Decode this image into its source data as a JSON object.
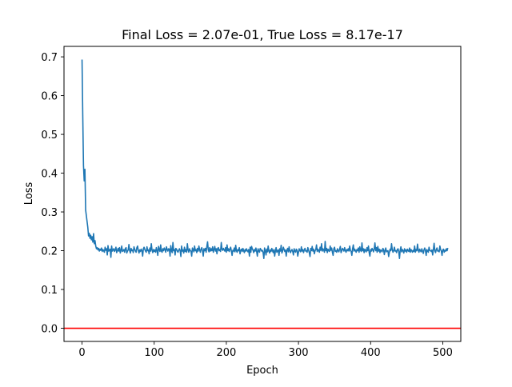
{
  "chart_data": {
    "type": "line",
    "title": "Final Loss = 2.07e-01, True Loss = 8.17e-17",
    "xlabel": "Epoch",
    "ylabel": "Loss",
    "xlim": [
      -25,
      525
    ],
    "ylim": [
      -0.034,
      0.727
    ],
    "xticks": [
      0,
      100,
      200,
      300,
      400,
      500
    ],
    "xtick_labels": [
      "0",
      "100",
      "200",
      "300",
      "400",
      "500"
    ],
    "yticks": [
      0.0,
      0.1,
      0.2,
      0.3,
      0.4,
      0.5,
      0.6,
      0.7
    ],
    "ytick_labels": [
      "0.0",
      "0.1",
      "0.2",
      "0.3",
      "0.4",
      "0.5",
      "0.6",
      "0.7"
    ],
    "grid": false,
    "series": [
      {
        "color": "#1f77b4",
        "x_start": 0,
        "x_step": 1,
        "values": [
          0.693,
          0.55,
          0.42,
          0.38,
          0.41,
          0.305,
          0.29,
          0.275,
          0.26,
          0.238,
          0.245,
          0.232,
          0.24,
          0.228,
          0.236,
          0.222,
          0.244,
          0.218,
          0.226,
          0.212,
          0.205,
          0.208,
          0.202,
          0.206,
          0.199,
          0.204,
          0.201,
          0.207,
          0.198,
          0.203,
          0.2,
          0.196,
          0.209,
          0.201,
          0.205,
          0.189,
          0.213,
          0.199,
          0.201,
          0.204,
          0.183,
          0.212,
          0.199,
          0.202,
          0.205,
          0.198,
          0.202,
          0.209,
          0.195,
          0.2,
          0.206,
          0.199,
          0.208,
          0.194,
          0.201,
          0.212,
          0.198,
          0.2,
          0.203,
          0.196,
          0.205,
          0.208,
          0.194,
          0.199,
          0.202,
          0.216,
          0.2,
          0.194,
          0.206,
          0.2,
          0.202,
          0.195,
          0.21,
          0.204,
          0.199,
          0.196,
          0.208,
          0.212,
          0.2,
          0.194,
          0.202,
          0.198,
          0.204,
          0.2,
          0.186,
          0.205,
          0.209,
          0.203,
          0.199,
          0.196,
          0.21,
          0.2,
          0.202,
          0.192,
          0.207,
          0.199,
          0.218,
          0.202,
          0.195,
          0.203,
          0.198,
          0.202,
          0.196,
          0.208,
          0.2,
          0.188,
          0.211,
          0.203,
          0.198,
          0.215,
          0.199,
          0.196,
          0.205,
          0.2,
          0.207,
          0.203,
          0.196,
          0.21,
          0.203,
          0.199,
          0.205,
          0.204,
          0.186,
          0.213,
          0.2,
          0.195,
          0.221,
          0.2,
          0.203,
          0.189,
          0.206,
          0.204,
          0.199,
          0.196,
          0.201,
          0.205,
          0.2,
          0.185,
          0.212,
          0.199,
          0.202,
          0.194,
          0.209,
          0.198,
          0.203,
          0.196,
          0.218,
          0.202,
          0.196,
          0.205,
          0.2,
          0.199,
          0.186,
          0.207,
          0.203,
          0.197,
          0.212,
          0.2,
          0.203,
          0.195,
          0.206,
          0.199,
          0.212,
          0.202,
          0.196,
          0.204,
          0.208,
          0.199,
          0.186,
          0.205,
          0.2,
          0.206,
          0.196,
          0.211,
          0.223,
          0.202,
          0.197,
          0.208,
          0.199,
          0.205,
          0.2,
          0.21,
          0.196,
          0.203,
          0.211,
          0.199,
          0.205,
          0.192,
          0.206,
          0.208,
          0.2,
          0.203,
          0.198,
          0.221,
          0.204,
          0.201,
          0.206,
          0.202,
          0.199,
          0.208,
          0.196,
          0.215,
          0.2,
          0.205,
          0.198,
          0.204,
          0.209,
          0.199,
          0.188,
          0.201,
          0.199,
          0.207,
          0.197,
          0.214,
          0.2,
          0.196,
          0.203,
          0.2,
          0.208,
          0.192,
          0.201,
          0.204,
          0.198,
          0.206,
          0.2,
          0.195,
          0.203,
          0.199,
          0.205,
          0.2,
          0.197,
          0.203,
          0.186,
          0.209,
          0.196,
          0.211,
          0.205,
          0.201,
          0.195,
          0.203,
          0.199,
          0.207,
          0.198,
          0.186,
          0.205,
          0.2,
          0.196,
          0.206,
          0.203,
          0.199,
          0.201,
          0.195,
          0.18,
          0.207,
          0.2,
          0.189,
          0.204,
          0.197,
          0.212,
          0.199,
          0.194,
          0.202,
          0.198,
          0.206,
          0.2,
          0.195,
          0.203,
          0.186,
          0.199,
          0.208,
          0.196,
          0.2,
          0.202,
          0.188,
          0.205,
          0.199,
          0.214,
          0.194,
          0.199,
          0.209,
          0.204,
          0.198,
          0.202,
          0.186,
          0.201,
          0.206,
          0.197,
          0.21,
          0.2,
          0.195,
          0.2,
          0.203,
          0.198,
          0.189,
          0.205,
          0.199,
          0.196,
          0.204,
          0.201,
          0.186,
          0.196,
          0.205,
          0.2,
          0.197,
          0.21,
          0.199,
          0.203,
          0.195,
          0.202,
          0.206,
          0.199,
          0.2,
          0.196,
          0.208,
          0.201,
          0.195,
          0.185,
          0.206,
          0.2,
          0.211,
          0.199,
          0.204,
          0.192,
          0.2,
          0.203,
          0.215,
          0.198,
          0.204,
          0.2,
          0.196,
          0.209,
          0.201,
          0.218,
          0.199,
          0.205,
          0.202,
          0.196,
          0.224,
          0.2,
          0.206,
          0.195,
          0.204,
          0.2,
          0.198,
          0.212,
          0.201,
          0.207,
          0.196,
          0.188,
          0.205,
          0.209,
          0.198,
          0.2,
          0.196,
          0.205,
          0.2,
          0.197,
          0.204,
          0.211,
          0.195,
          0.2,
          0.206,
          0.203,
          0.199,
          0.208,
          0.2,
          0.196,
          0.203,
          0.2,
          0.205,
          0.199,
          0.212,
          0.201,
          0.198,
          0.188,
          0.205,
          0.215,
          0.199,
          0.204,
          0.2,
          0.196,
          0.203,
          0.2,
          0.207,
          0.196,
          0.21,
          0.201,
          0.198,
          0.22,
          0.2,
          0.205,
          0.195,
          0.204,
          0.2,
          0.197,
          0.208,
          0.2,
          0.212,
          0.195,
          0.186,
          0.203,
          0.199,
          0.206,
          0.202,
          0.197,
          0.205,
          0.22,
          0.2,
          0.208,
          0.196,
          0.211,
          0.199,
          0.204,
          0.195,
          0.202,
          0.2,
          0.197,
          0.206,
          0.203,
          0.19,
          0.2,
          0.207,
          0.197,
          0.199,
          0.2,
          0.185,
          0.196,
          0.204,
          0.2,
          0.218,
          0.203,
          0.196,
          0.2,
          0.209,
          0.199,
          0.2,
          0.195,
          0.203,
          0.205,
          0.198,
          0.18,
          0.201,
          0.21,
          0.197,
          0.203,
          0.2,
          0.194,
          0.205,
          0.199,
          0.202,
          0.196,
          0.204,
          0.2,
          0.198,
          0.207,
          0.196,
          0.203,
          0.2,
          0.196,
          0.201,
          0.198,
          0.212,
          0.196,
          0.203,
          0.2,
          0.217,
          0.201,
          0.196,
          0.204,
          0.2,
          0.197,
          0.205,
          0.199,
          0.193,
          0.202,
          0.207,
          0.2,
          0.188,
          0.203,
          0.199,
          0.196,
          0.209,
          0.201,
          0.2,
          0.198,
          0.202,
          0.189,
          0.203,
          0.219,
          0.2,
          0.195,
          0.203,
          0.207,
          0.199,
          0.2,
          0.197,
          0.212,
          0.203,
          0.199,
          0.188,
          0.202,
          0.204,
          0.196,
          0.201,
          0.199,
          0.205,
          0.2,
          0.207
        ]
      }
    ],
    "hlines": [
      {
        "y": 0.0,
        "color": "#ff0000"
      }
    ]
  }
}
